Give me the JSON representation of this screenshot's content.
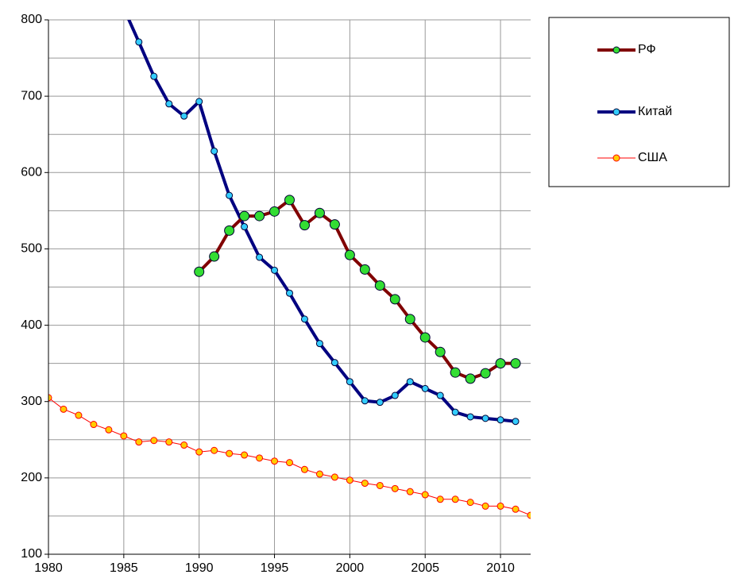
{
  "chart_data": {
    "type": "line",
    "x": [
      1980,
      1981,
      1982,
      1983,
      1984,
      1985,
      1986,
      1987,
      1988,
      1989,
      1990,
      1991,
      1992,
      1993,
      1994,
      1995,
      1996,
      1997,
      1998,
      1999,
      2000,
      2001,
      2002,
      2003,
      2004,
      2005,
      2006,
      2007,
      2008,
      2009,
      2010,
      2011,
      2012
    ],
    "series": [
      {
        "name": "РФ",
        "color": "#800000",
        "marker_color": "#33dd33",
        "line_width": 4,
        "marker_size": 6,
        "values": [
          null,
          null,
          null,
          null,
          null,
          null,
          null,
          null,
          null,
          null,
          470,
          490,
          524,
          543,
          543,
          549,
          564,
          531,
          547,
          532,
          492,
          473,
          452,
          434,
          408,
          384,
          365,
          338,
          330,
          337,
          350,
          350,
          null
        ]
      },
      {
        "name": "Китай",
        "color": "#000080",
        "marker_color": "#33ccff",
        "line_width": 4,
        "marker_size": 4,
        "values": [
          null,
          null,
          null,
          null,
          null,
          815,
          771,
          726,
          690,
          674,
          693,
          628,
          570,
          529,
          489,
          472,
          442,
          408,
          376,
          351,
          326,
          301,
          299,
          308,
          326,
          317,
          308,
          286,
          280,
          278,
          276,
          274,
          null
        ]
      },
      {
        "name": "США",
        "color": "#ff0000",
        "marker_color": "#ffcc00",
        "line_width": 1,
        "marker_size": 4,
        "values": [
          305,
          290,
          282,
          270,
          263,
          255,
          247,
          249,
          247,
          243,
          234,
          236,
          232,
          230,
          226,
          222,
          220,
          211,
          205,
          201,
          197,
          193,
          190,
          186,
          182,
          178,
          172,
          172,
          168,
          163,
          163,
          159,
          151
        ]
      }
    ],
    "xlim": [
      1980,
      2012
    ],
    "xticks": [
      1980,
      1985,
      1990,
      1995,
      2000,
      2005,
      2010
    ],
    "ylim": [
      100,
      800
    ],
    "yticks": [
      100,
      200,
      300,
      400,
      500,
      600,
      700,
      800
    ],
    "minor_yticks": [
      150,
      250,
      350,
      450,
      550,
      650,
      750
    ],
    "grid": true,
    "legend": "right"
  }
}
